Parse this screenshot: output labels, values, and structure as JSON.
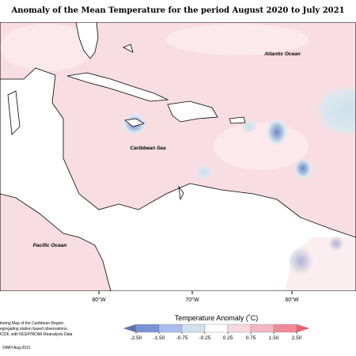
{
  "title": "Anomaly of the Mean Temperature for the period August 2020 to July 2021",
  "map": {
    "ocean_labels": [
      "Atlantic Ocean",
      "Caribbean Sea",
      "Pacific Ocean"
    ],
    "longitude_labels": [
      "80°W",
      "70°W",
      "60°W"
    ]
  },
  "legend": {
    "title": "Temperature Anomaly (˚C)",
    "ticks": [
      {
        "value": -2.5,
        "label": "-2.50"
      },
      {
        "value": -1.5,
        "label": "-1.50"
      },
      {
        "value": -0.75,
        "label": "-0.75"
      },
      {
        "value": -0.25,
        "label": "-0.25"
      },
      {
        "value": 0.25,
        "label": "0.25"
      },
      {
        "value": 0.75,
        "label": "0.75"
      },
      {
        "value": 1.5,
        "label": "1.50"
      },
      {
        "value": 2.5,
        "label": "2.50"
      }
    ],
    "colors": [
      "#5b74b0",
      "#7893d6",
      "#aabcf0",
      "#cfe0ee",
      "#ffffff",
      "#f7d9de",
      "#f3b7c1",
      "#f08a98",
      "#f2606f"
    ]
  },
  "credits": [
    "itoring Map of the Caribbean Region.",
    "egregating station based observations,",
    "ICDF, with NCEP/NCAR Reanalysis Data",
    "©IMH Aug-2021"
  ]
}
